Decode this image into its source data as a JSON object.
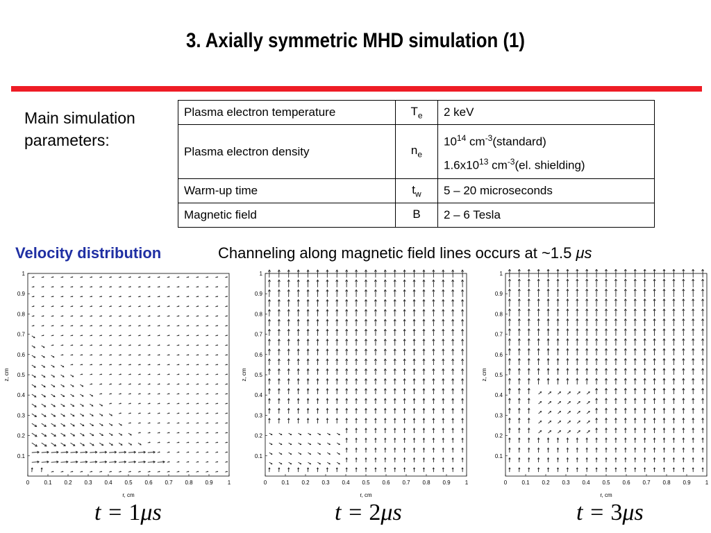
{
  "title": "3. Axially symmetric MHD simulation (1)",
  "params_label_line1": "Main simulation",
  "params_label_line2": "parameters:",
  "table": {
    "rows": [
      {
        "name": "Plasma electron temperature",
        "sym_base": "T",
        "sym_sub": "e",
        "value": "2 keV"
      },
      {
        "name": "Plasma electron density",
        "sym_base": "n",
        "sym_sub": "e",
        "value_line1": {
          "mant": "10",
          "exp": "14",
          "unit": "cm",
          "unit_exp": "-3",
          "note": "(standard)"
        },
        "value_line2": {
          "mant": "1.6x10",
          "exp": "13",
          "unit": "cm",
          "unit_exp": "-3",
          "note": "(el. shielding)"
        }
      },
      {
        "name": "Warm-up time",
        "sym_base": "t",
        "sym_sub": "w",
        "value": "5 – 20 microseconds"
      },
      {
        "name": "Magnetic field",
        "sym_base": "B",
        "sym_sub": "",
        "value": "2 – 6 Tesla"
      }
    ]
  },
  "velocity_label": "Velocity distribution",
  "channeling_text": "Channeling along magnetic field lines occurs at ~1.5",
  "channeling_unit": "μs",
  "plots": [
    {
      "time_prefix": "t = ",
      "time_value": "1",
      "time_unit": "μs",
      "xlabel": "r, cm",
      "ylabel": "z, cm"
    },
    {
      "time_prefix": "t = ",
      "time_value": "2",
      "time_unit": "μs",
      "xlabel": "r, cm",
      "ylabel": "z, cm"
    },
    {
      "time_prefix": "t = ",
      "time_value": "3",
      "time_unit": "μs",
      "xlabel": "r, cm",
      "ylabel": "z, cm"
    }
  ],
  "x_ticks": [
    "0",
    "0.1",
    "0.2",
    "0.3",
    "0.4",
    "0.5",
    "0.6",
    "0.7",
    "0.8",
    "0.9",
    "1"
  ],
  "y_ticks": [
    "0.1",
    "0.2",
    "0.3",
    "0.4",
    "0.5",
    "0.6",
    "0.7",
    "0.8",
    "0.9",
    "1"
  ],
  "chart_data": [
    {
      "type": "quiver",
      "title": "",
      "xlabel": "r, cm",
      "ylabel": "z, cm",
      "xlim": [
        0,
        1
      ],
      "ylim": [
        0,
        1
      ],
      "caption": "t = 1 μs"
    },
    {
      "type": "quiver",
      "title": "",
      "xlabel": "r, cm",
      "ylabel": "z, cm",
      "xlim": [
        0,
        1
      ],
      "ylim": [
        0,
        1
      ],
      "caption": "t = 2 μs"
    },
    {
      "type": "quiver",
      "title": "",
      "xlabel": "r, cm",
      "ylabel": "z, cm",
      "xlim": [
        0,
        1
      ],
      "ylim": [
        0,
        1
      ],
      "caption": "t = 3 μs"
    }
  ]
}
